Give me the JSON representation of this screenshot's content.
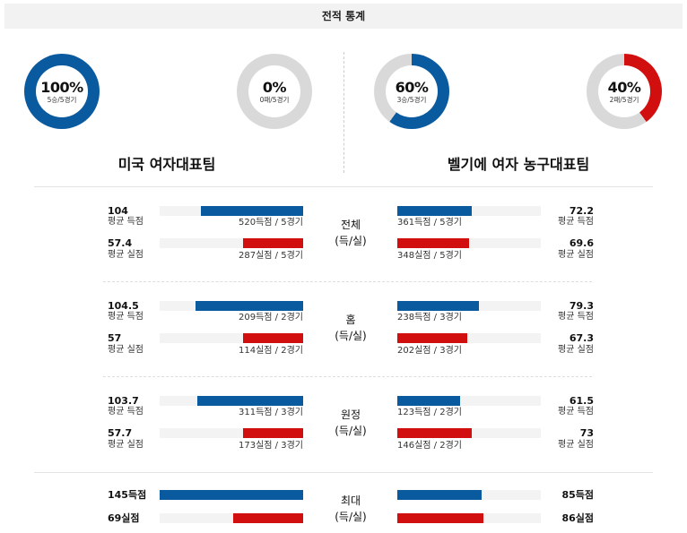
{
  "header": {
    "title": "전적 통계"
  },
  "donuts": [
    {
      "pct": "100%",
      "record": "5승/5경기",
      "value": 100,
      "color": "#0a5aa0"
    },
    {
      "pct": "0%",
      "record": "0패/5경기",
      "value": 0,
      "color": "#d10f0f"
    },
    {
      "pct": "60%",
      "record": "3승/5경기",
      "value": 60,
      "color": "#0a5aa0"
    },
    {
      "pct": "40%",
      "record": "2패/5경기",
      "value": 40,
      "color": "#d10f0f"
    }
  ],
  "teams": {
    "left": "미국 여자대표팀",
    "right": "벨기에 여자 농구대표팀"
  },
  "labels": {
    "avg_score": "평균 득점",
    "avg_lost": "평균 실점"
  },
  "sections": [
    {
      "title": "전체",
      "subtitle": "(득/실)",
      "left": {
        "score": {
          "num": "104",
          "caption": "520득점 / 5경기",
          "ratio": 0.71
        },
        "lost": {
          "num": "57.4",
          "caption": "287실점 / 5경기",
          "ratio": 0.42
        }
      },
      "right": {
        "score": {
          "num": "72.2",
          "caption": "361득점 / 5경기",
          "ratio": 0.52
        },
        "lost": {
          "num": "69.6",
          "caption": "348실점 / 5경기",
          "ratio": 0.5
        }
      }
    },
    {
      "title": "홈",
      "subtitle": "(득/실)",
      "left": {
        "score": {
          "num": "104.5",
          "caption": "209득점 / 2경기",
          "ratio": 0.75
        },
        "lost": {
          "num": "57",
          "caption": "114실점 / 2경기",
          "ratio": 0.42
        }
      },
      "right": {
        "score": {
          "num": "79.3",
          "caption": "238득점 / 3경기",
          "ratio": 0.57
        },
        "lost": {
          "num": "67.3",
          "caption": "202실점 / 3경기",
          "ratio": 0.49
        }
      }
    },
    {
      "title": "원정",
      "subtitle": "(득/실)",
      "left": {
        "score": {
          "num": "103.7",
          "caption": "311득점 / 3경기",
          "ratio": 0.74
        },
        "lost": {
          "num": "57.7",
          "caption": "173실점 / 3경기",
          "ratio": 0.42
        }
      },
      "right": {
        "score": {
          "num": "61.5",
          "caption": "123득점 / 2경기",
          "ratio": 0.44
        },
        "lost": {
          "num": "73",
          "caption": "146실점 / 2경기",
          "ratio": 0.52
        }
      }
    }
  ],
  "max_section": {
    "title": "최대",
    "subtitle": "(득/실)",
    "left": {
      "score": {
        "num": "145득점",
        "ratio": 1.0
      },
      "lost": {
        "num": "69실점",
        "ratio": 0.49
      }
    },
    "right": {
      "score": {
        "num": "85득점",
        "ratio": 0.59
      },
      "lost": {
        "num": "86실점",
        "ratio": 0.6
      }
    }
  }
}
